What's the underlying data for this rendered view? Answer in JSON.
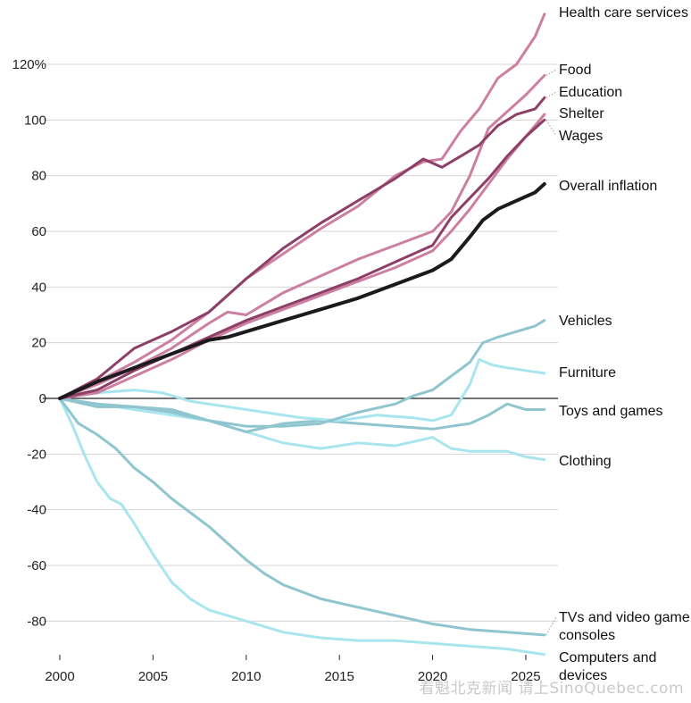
{
  "chart_data": {
    "type": "line",
    "title": "",
    "xlabel": "",
    "ylabel": "",
    "y_unit_label": "120%",
    "xlim": [
      2000,
      2026.2
    ],
    "ylim": [
      -94,
      142
    ],
    "x_ticks": [
      2000,
      2005,
      2010,
      2015,
      2020,
      2025
    ],
    "y_ticks": [
      {
        "value": 120,
        "label": "120%"
      },
      {
        "value": 100,
        "label": "100"
      },
      {
        "value": 80,
        "label": "80"
      },
      {
        "value": 60,
        "label": "60"
      },
      {
        "value": 40,
        "label": "40"
      },
      {
        "value": 20,
        "label": "20"
      },
      {
        "value": 0,
        "label": "0"
      },
      {
        "value": -20,
        "label": "-20"
      },
      {
        "value": -40,
        "label": "-40"
      },
      {
        "value": -60,
        "label": "-60"
      },
      {
        "value": -80,
        "label": "-80"
      }
    ],
    "series": [
      {
        "key": "health",
        "name": "Health care services",
        "color": "#cc7fa0",
        "width": 3,
        "label_y": 140,
        "x": [
          2000,
          2002,
          2004,
          2006,
          2008,
          2010,
          2012,
          2014,
          2016,
          2018,
          2019.5,
          2020.5,
          2021.5,
          2022.5,
          2023.5,
          2024.5,
          2025.5,
          2026
        ],
        "y": [
          0,
          6,
          13,
          21,
          31,
          43,
          52,
          61,
          69,
          80,
          85,
          86,
          96,
          104,
          115,
          120,
          130,
          138
        ]
      },
      {
        "key": "food",
        "name": "Food",
        "color": "#cc7fa0",
        "width": 3,
        "label_y": 116,
        "x": [
          2000,
          2002,
          2004,
          2006,
          2008,
          2009,
          2010,
          2012,
          2014,
          2016,
          2018,
          2020,
          2021,
          2022,
          2023,
          2024,
          2025,
          2026
        ],
        "y": [
          0,
          5,
          11,
          18,
          27,
          31,
          30,
          38,
          44,
          50,
          55,
          60,
          67,
          80,
          97,
          103,
          109,
          116
        ]
      },
      {
        "key": "education",
        "name": "Education",
        "color": "#8d3f68",
        "width": 3,
        "label_y": 108,
        "x": [
          2000,
          2002,
          2004,
          2006,
          2008,
          2010,
          2012,
          2014,
          2016,
          2018,
          2019.5,
          2020.5,
          2021.5,
          2022.5,
          2023.5,
          2024.5,
          2025.5,
          2026
        ],
        "y": [
          0,
          7,
          18,
          24,
          31,
          43,
          54,
          63,
          71,
          79,
          86,
          83,
          87,
          91,
          98,
          102,
          104,
          108
        ]
      },
      {
        "key": "shelter",
        "name": "Shelter",
        "color": "#cc7fa0",
        "width": 3,
        "label_y": 102,
        "x": [
          2000,
          2002,
          2004,
          2006,
          2008,
          2010,
          2012,
          2014,
          2016,
          2018,
          2020,
          2021,
          2022,
          2023,
          2024,
          2025,
          2026
        ],
        "y": [
          0,
          2,
          8,
          14,
          21,
          27,
          32,
          37,
          42,
          47,
          53,
          60,
          68,
          77,
          86,
          94,
          102
        ]
      },
      {
        "key": "wages",
        "name": "Wages",
        "color": "#8d3f68",
        "width": 3,
        "label_y": 100,
        "x": [
          2000,
          2002,
          2004,
          2006,
          2008,
          2010,
          2012,
          2014,
          2016,
          2018,
          2020,
          2021,
          2022,
          2023,
          2024,
          2025,
          2026
        ],
        "y": [
          0,
          3,
          10,
          16,
          22,
          28,
          33,
          38,
          43,
          49,
          55,
          65,
          72,
          79,
          87,
          94,
          100
        ]
      },
      {
        "key": "overall",
        "name": "Overall inflation",
        "color": "#1c1a1c",
        "width": 4,
        "label_y": 77,
        "x": [
          2000,
          2002,
          2004,
          2006,
          2008,
          2009,
          2010,
          2012,
          2014,
          2016,
          2018,
          2020,
          2021,
          2022,
          2022.7,
          2023.5,
          2024.5,
          2025.5,
          2026
        ],
        "y": [
          0,
          6,
          11,
          16,
          21,
          22,
          24,
          28,
          32,
          36,
          41,
          46,
          50,
          58,
          64,
          68,
          71,
          74,
          77
        ]
      },
      {
        "key": "vehicles",
        "name": "Vehicles",
        "color": "#8fc5cf",
        "width": 3,
        "label_y": 28,
        "x": [
          2000,
          2002,
          2004,
          2006,
          2008,
          2010,
          2012,
          2014,
          2016,
          2018,
          2019,
          2020,
          2021,
          2022,
          2022.7,
          2023.5,
          2024.5,
          2025.5,
          2026
        ],
        "y": [
          0,
          -2,
          -3,
          -5,
          -8,
          -10,
          -10,
          -9,
          -5,
          -2,
          1,
          3,
          8,
          13,
          20,
          22,
          24,
          26,
          28
        ]
      },
      {
        "key": "furniture",
        "name": "Furniture",
        "color": "#a8e5ee",
        "width": 3,
        "label_y": 10,
        "x": [
          2000,
          2002,
          2004,
          2005.5,
          2007,
          2009,
          2011,
          2013,
          2015,
          2017,
          2019,
          2020,
          2021,
          2022,
          2022.5,
          2023.2,
          2024,
          2025,
          2026
        ],
        "y": [
          0,
          2,
          3,
          2,
          -1,
          -3,
          -5,
          -7,
          -8,
          -6,
          -7,
          -8,
          -6,
          5,
          14,
          12,
          11,
          10,
          9
        ]
      },
      {
        "key": "toys",
        "name": "Toys and games",
        "color": "#8fc5cf",
        "width": 3,
        "label_y": -4,
        "x": [
          2000,
          2002,
          2004,
          2006,
          2008,
          2010,
          2012,
          2014,
          2016,
          2018,
          2020,
          2021,
          2022,
          2023,
          2024,
          2025,
          2026
        ],
        "y": [
          0,
          -3,
          -3,
          -4,
          -8,
          -12,
          -9,
          -8,
          -9,
          -10,
          -11,
          -10,
          -9,
          -6,
          -2,
          -4,
          -4
        ]
      },
      {
        "key": "clothing",
        "name": "Clothing",
        "color": "#a8e5ee",
        "width": 3,
        "label_y": -22,
        "x": [
          2000,
          2002,
          2004,
          2006,
          2008,
          2010,
          2012,
          2014,
          2016,
          2018,
          2020,
          2021,
          2022,
          2023,
          2024,
          2025,
          2026
        ],
        "y": [
          0,
          -2,
          -4,
          -6,
          -8,
          -12,
          -16,
          -18,
          -16,
          -17,
          -14,
          -18,
          -19,
          -19,
          -19,
          -21,
          -22
        ]
      },
      {
        "key": "tvs",
        "name": "TVs and video game consoles",
        "color": "#8fc5cf",
        "width": 3,
        "label_y": -82,
        "x": [
          2000,
          2001,
          2002,
          2003,
          2004,
          2005,
          2006,
          2007,
          2008,
          2009,
          2010,
          2011,
          2012,
          2014,
          2016,
          2018,
          2020,
          2022,
          2024,
          2026
        ],
        "y": [
          0,
          -9,
          -13,
          -18,
          -25,
          -30,
          -36,
          -41,
          -46,
          -52,
          -58,
          -63,
          -67,
          -72,
          -75,
          -78,
          -81,
          -83,
          -84,
          -85
        ]
      },
      {
        "key": "computers",
        "name": "Computers and devices",
        "color": "#a8e5ee",
        "width": 3,
        "label_y": -92,
        "x": [
          2000,
          2000.7,
          2001.3,
          2002,
          2002.7,
          2003.3,
          2004,
          2005,
          2006,
          2007,
          2008,
          2009,
          2010,
          2012,
          2014,
          2016,
          2018,
          2020,
          2022,
          2024,
          2026
        ],
        "y": [
          0,
          -10,
          -20,
          -30,
          -36,
          -38,
          -45,
          -56,
          -66,
          -72,
          -76,
          -78,
          -80,
          -84,
          -86,
          -87,
          -87,
          -88,
          -89,
          -90,
          -92
        ]
      }
    ]
  },
  "watermark": "看魁北克新闻 请上SinoQuebec.com"
}
